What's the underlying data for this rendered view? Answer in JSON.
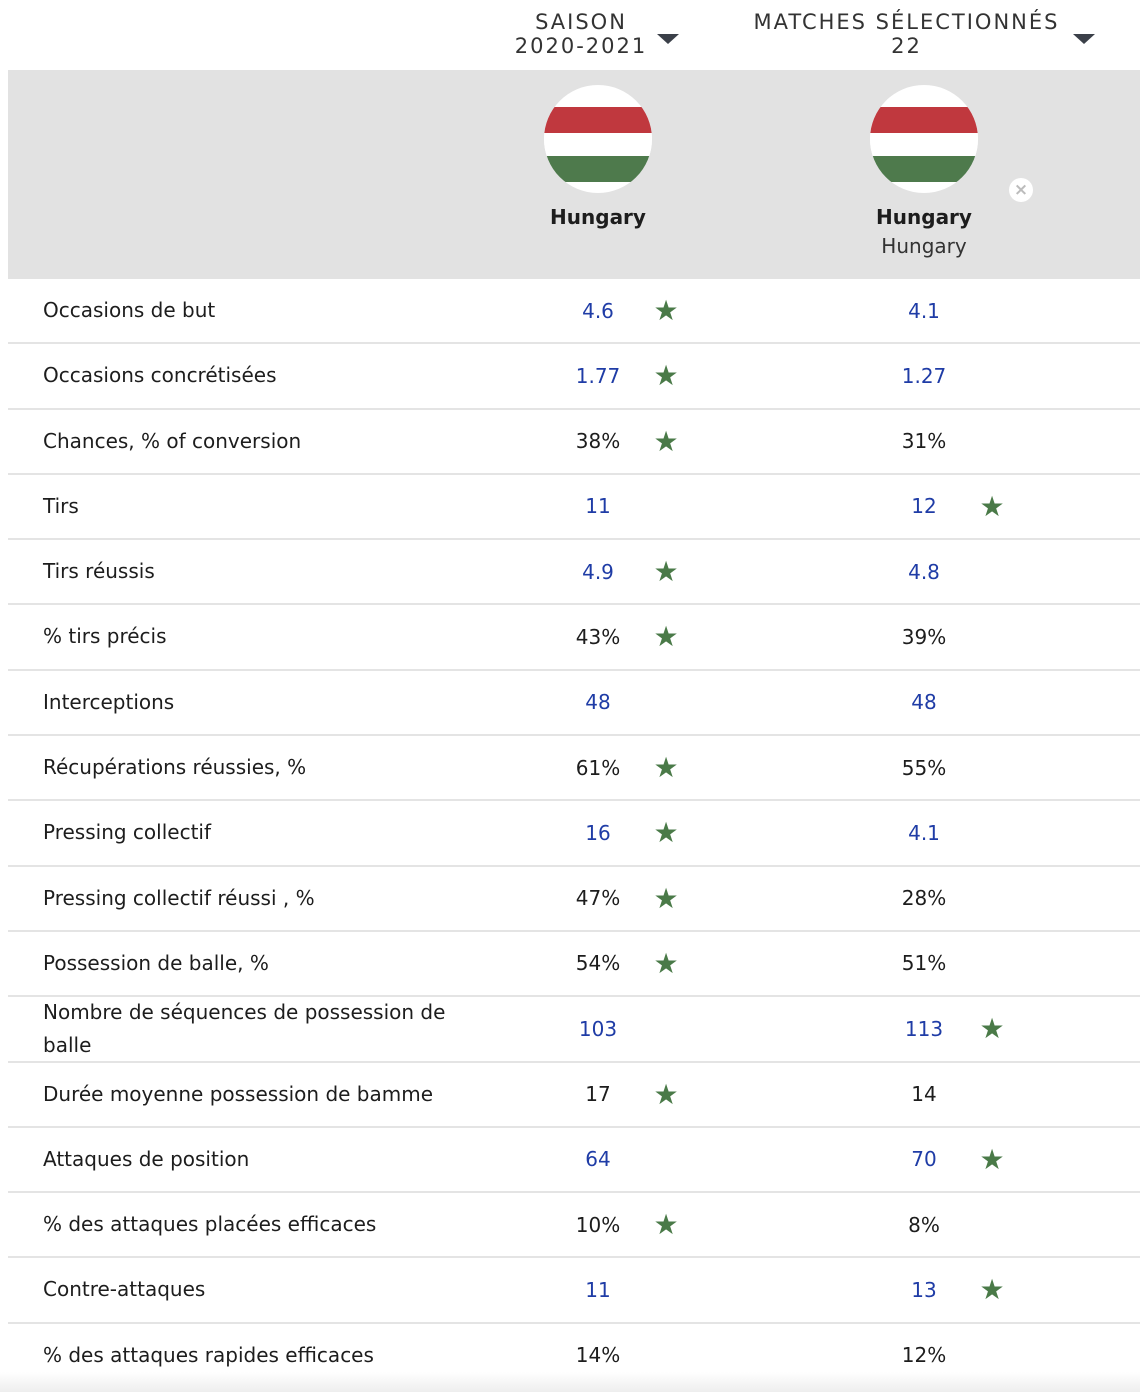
{
  "columns": [
    {
      "line1": "SAISON",
      "line2": "2020-2021"
    },
    {
      "line1": "MATCHES SÉLECTIONNÉS",
      "line2": "22"
    }
  ],
  "teams": [
    {
      "name": "Hungary",
      "sub": ""
    },
    {
      "name": "Hungary",
      "sub": "Hungary"
    }
  ],
  "remove_icon": "×",
  "colors": {
    "link": "#1f3ca6",
    "star": "#4a7a48",
    "header_band": "#e2e2e2",
    "flag_red": "#c0383e",
    "flag_green": "#4e7a4c"
  },
  "rows": [
    {
      "label": "Occasions de but",
      "v1": "4.6",
      "v2": "4.1",
      "link": true,
      "star": 1
    },
    {
      "label": "Occasions concrétisées",
      "v1": "1.77",
      "v2": "1.27",
      "link": true,
      "star": 1
    },
    {
      "label": "Chances, % of conversion",
      "v1": "38%",
      "v2": "31%",
      "link": false,
      "star": 1
    },
    {
      "label": "Tirs",
      "v1": "11",
      "v2": "12",
      "link": true,
      "star": 2
    },
    {
      "label": "Tirs réussis",
      "v1": "4.9",
      "v2": "4.8",
      "link": true,
      "star": 1
    },
    {
      "label": "% tirs précis",
      "v1": "43%",
      "v2": "39%",
      "link": false,
      "star": 1
    },
    {
      "label": "Interceptions",
      "v1": "48",
      "v2": "48",
      "link": true,
      "star": 0
    },
    {
      "label": "Récupérations réussies, %",
      "v1": "61%",
      "v2": "55%",
      "link": false,
      "star": 1
    },
    {
      "label": "Pressing collectif",
      "v1": "16",
      "v2": "4.1",
      "link": true,
      "star": 1
    },
    {
      "label": "Pressing collectif réussi , %",
      "v1": "47%",
      "v2": "28%",
      "link": false,
      "star": 1
    },
    {
      "label": "Possession de balle, %",
      "v1": "54%",
      "v2": "51%",
      "link": false,
      "star": 1
    },
    {
      "label": "Nombre de séquences de possession de balle",
      "v1": "103",
      "v2": "113",
      "link": true,
      "star": 2
    },
    {
      "label": "Durée moyenne possession de bamme",
      "v1": "17",
      "v2": "14",
      "link": false,
      "star": 1
    },
    {
      "label": "Attaques de position",
      "v1": "64",
      "v2": "70",
      "link": true,
      "star": 2
    },
    {
      "label": "% des attaques placées efficaces",
      "v1": "10%",
      "v2": "8%",
      "link": false,
      "star": 1
    },
    {
      "label": "Contre-attaques",
      "v1": "11",
      "v2": "13",
      "link": true,
      "star": 2
    },
    {
      "label": "% des attaques rapides efficaces",
      "v1": "14%",
      "v2": "12%",
      "link": false,
      "star": 0
    }
  ]
}
